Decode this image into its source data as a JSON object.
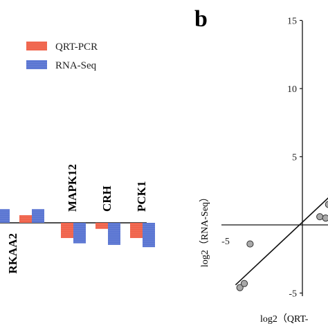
{
  "panel_label": "b",
  "chart_data": [
    {
      "type": "bar",
      "legend": [
        {
          "name": "QRT-PCR",
          "color": "#f0644c"
        },
        {
          "name": "RNA-Seq",
          "color": "#5b76d2"
        }
      ],
      "legend_position": "top-left",
      "categories": [
        "",
        "RKAA2",
        "MAPK12",
        "CRH",
        "PCK1"
      ],
      "series": [
        {
          "name": "QRT-PCR",
          "values": [
            0.0,
            0.5,
            -1.0,
            -0.4,
            -1.0
          ]
        },
        {
          "name": "RNA-Seq",
          "values": [
            0.9,
            0.9,
            -1.35,
            -1.45,
            -1.6
          ]
        }
      ],
      "ylim": [
        -2.5,
        2.5
      ]
    },
    {
      "type": "scatter",
      "ylabel": "log2（RNA-Seq）",
      "xlabel": "log2（QRT-",
      "xlim": [
        -5,
        5
      ],
      "ylim": [
        -5,
        15
      ],
      "y_ticks": [
        15,
        10,
        5,
        -5
      ],
      "x_ticks": [
        -5
      ],
      "points": [
        {
          "x": -4.3,
          "y": -4.6
        },
        {
          "x": -4.0,
          "y": -4.3
        },
        {
          "x": -3.6,
          "y": -1.4
        },
        {
          "x": 1.2,
          "y": 0.6
        },
        {
          "x": 1.6,
          "y": 0.5
        },
        {
          "x": 1.8,
          "y": 1.5
        },
        {
          "x": 2.0,
          "y": 2.2
        }
      ],
      "fit_line": {
        "x": [
          -4.6,
          2.3
        ],
        "y": [
          -4.4,
          2.5
        ]
      }
    }
  ]
}
